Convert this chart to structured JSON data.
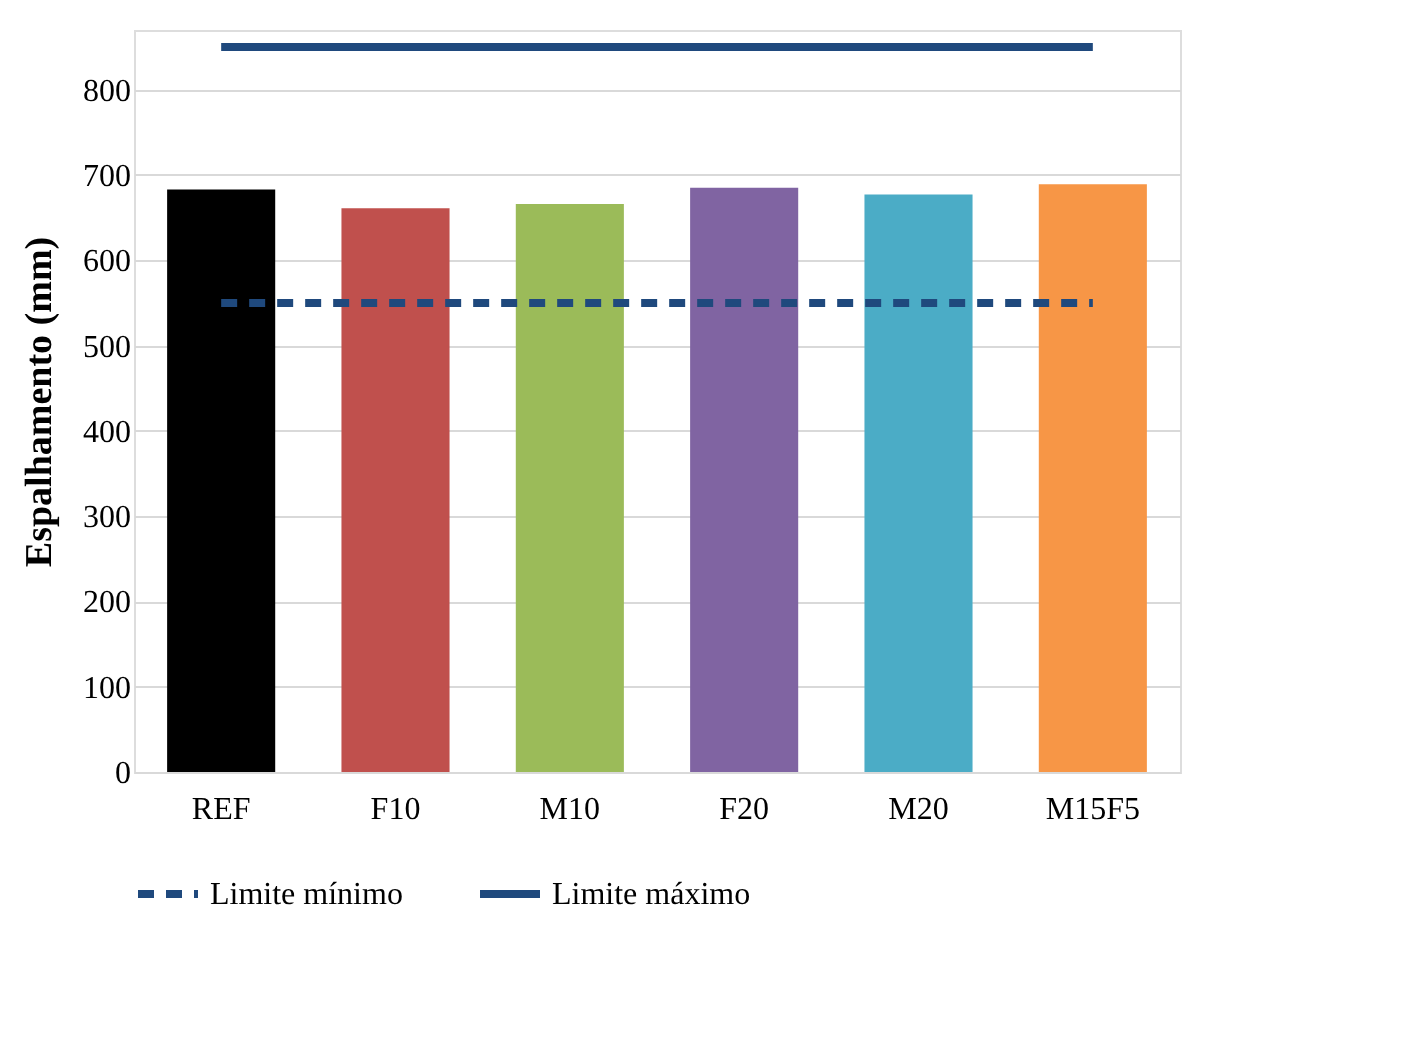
{
  "chart_data": {
    "type": "bar",
    "ylabel": "Espalhamento (mm)",
    "categories": [
      "REF",
      "F10",
      "M10",
      "F20",
      "M20",
      "M15F5"
    ],
    "values": [
      683,
      661,
      666,
      685,
      677,
      689
    ],
    "colors": [
      "#000000",
      "#c0504d",
      "#9bbb59",
      "#8064a2",
      "#4bacc6",
      "#f79646"
    ],
    "series": [
      {
        "type": "line",
        "name": "Limite mínimo",
        "color": "#1f497d",
        "line_style": "dashed",
        "values": [
          550,
          550,
          550,
          550,
          550,
          550
        ]
      },
      {
        "type": "line",
        "name": "Limite máximo",
        "color": "#1f497d",
        "line_style": "solid",
        "values": [
          850,
          850,
          850,
          850,
          850,
          850
        ]
      }
    ],
    "ylim": [
      0,
      870
    ],
    "yticks": [
      0,
      100,
      200,
      300,
      400,
      500,
      600,
      700,
      800
    ],
    "grid": "y",
    "legend": "bottom"
  }
}
